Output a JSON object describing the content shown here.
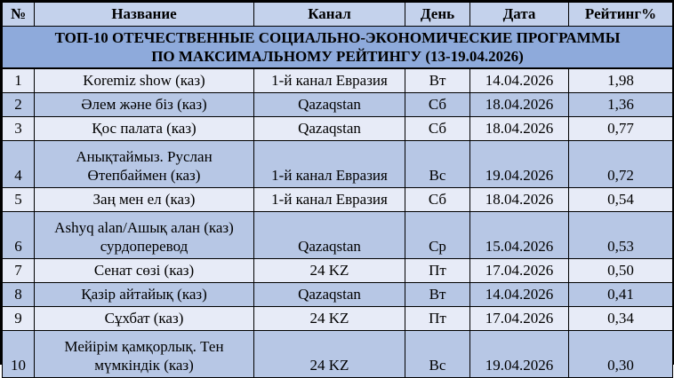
{
  "table": {
    "title": "ТОП-10 ОТЕЧЕСТВЕННЫЕ СОЦИАЛЬНО-ЭКОНОМИЧЕСКИЕ ПРОГРАММЫ ПО МАКСИМАЛЬНОМУ РЕЙТИНГУ (13-19.04.2026)",
    "columns": [
      "№",
      "Название",
      "Канал",
      "День",
      "Дата",
      "Рейтинг%"
    ],
    "rows": [
      {
        "num": "1",
        "name": "Koremiz show (каз)",
        "channel": "1-й канал Евразия",
        "day": "Вт",
        "date": "14.04.2026",
        "rating": "1,98"
      },
      {
        "num": "2",
        "name": "Әлем және біз (каз)",
        "channel": "Qazaqstan",
        "day": "Сб",
        "date": "18.04.2026",
        "rating": "1,36"
      },
      {
        "num": "3",
        "name": "Қос палата (каз)",
        "channel": "Qazaqstan",
        "day": "Сб",
        "date": "18.04.2026",
        "rating": "0,77"
      },
      {
        "num": "4",
        "name": "Анықтаймыз. Руслан Өтепбаймен (каз)",
        "channel": "1-й канал Евразия",
        "day": "Вс",
        "date": "19.04.2026",
        "rating": "0,72"
      },
      {
        "num": "5",
        "name": "Заң мен ел (каз)",
        "channel": "1-й канал Евразия",
        "day": "Сб",
        "date": "18.04.2026",
        "rating": "0,54"
      },
      {
        "num": "6",
        "name": "Ashyq alan/Ашық алан (каз) сурдоперевод",
        "channel": "Qazaqstan",
        "day": "Ср",
        "date": "15.04.2026",
        "rating": "0,53"
      },
      {
        "num": "7",
        "name": "Сенат сөзі (каз)",
        "channel": "24 KZ",
        "day": "Пт",
        "date": "17.04.2026",
        "rating": "0,50"
      },
      {
        "num": "8",
        "name": "Қазір айтайық (каз)",
        "channel": "Qazaqstan",
        "day": "Вт",
        "date": "14.04.2026",
        "rating": "0,41"
      },
      {
        "num": "9",
        "name": "Сұхбат (каз)",
        "channel": "24 KZ",
        "day": "Пт",
        "date": "17.04.2026",
        "rating": "0,34"
      },
      {
        "num": "10",
        "name": "Мейірім қамқорлық. Тен мүмкіндік (каз)",
        "channel": "24 KZ",
        "day": "Вс",
        "date": "19.04.2026",
        "rating": "0,30"
      }
    ]
  },
  "colors": {
    "title_bg": "#8EAADB",
    "header_bg": "#C4D2EC",
    "row_light": "#E7EBF7",
    "row_dark": "#B7C7E5",
    "border": "#000000"
  }
}
